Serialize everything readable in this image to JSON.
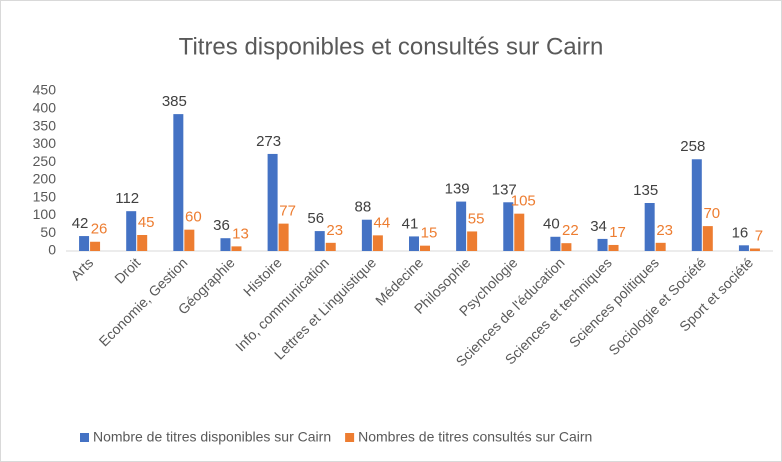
{
  "chart_data": {
    "type": "bar",
    "title": "Titres disponibles et consultés sur Cairn",
    "categories": [
      "Arts",
      "Droit",
      "Economie, Gestion",
      "Géographie",
      "Histoire",
      "Info, communication",
      "Lettres et Linguistique",
      "Médecine",
      "Philosophie",
      "Psychologie",
      "Sciences de l'éducation",
      "Sciences et techniques",
      "Sciences politiques",
      "Sociologie et Société",
      "Sport et société"
    ],
    "series": [
      {
        "name": "Nombre de titres disponibles sur Cairn",
        "color": "#4472c4",
        "values": [
          42,
          112,
          385,
          36,
          273,
          56,
          88,
          41,
          139,
          137,
          40,
          34,
          135,
          258,
          16
        ]
      },
      {
        "name": "Nombres de titres consultés sur Cairn",
        "color": "#ed7d31",
        "values": [
          26,
          45,
          60,
          13,
          77,
          23,
          44,
          15,
          55,
          105,
          22,
          17,
          23,
          70,
          7
        ]
      }
    ],
    "ylim": [
      0,
      450
    ],
    "yticks": [
      0,
      50,
      100,
      150,
      200,
      250,
      300,
      350,
      400,
      450
    ],
    "grid": false,
    "legend": "bottom"
  }
}
